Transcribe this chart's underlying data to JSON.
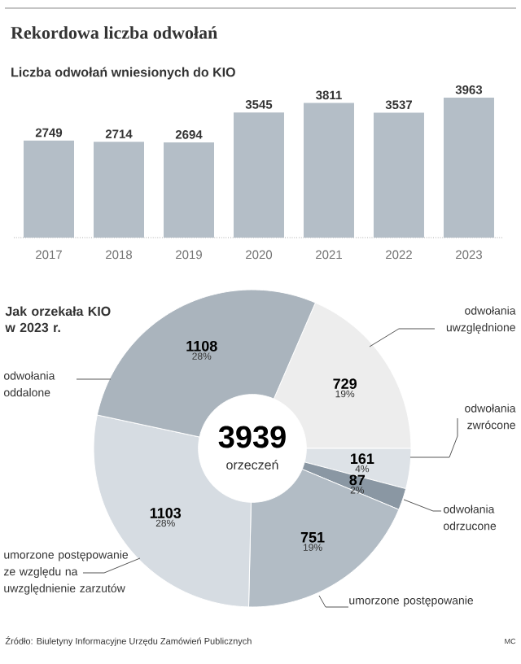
{
  "chart_data": [
    {
      "type": "bar",
      "title": "Rekordowa liczba odwołań",
      "subtitle": "Liczba odwołań wniesionych do KIO",
      "categories": [
        "2017",
        "2018",
        "2019",
        "2020",
        "2021",
        "2022",
        "2023"
      ],
      "values": [
        2749,
        2714,
        2694,
        3545,
        3811,
        3537,
        3963
      ],
      "color": "#b4bec7",
      "data_labels": true,
      "tick_labels": "x"
    },
    {
      "type": "donut",
      "title": "Jak orzekała KIO w 2023 r.",
      "categories": [
        "odwołania uwzględnione",
        "odwołania zwrócone",
        "odwołania odrzucone",
        "umorzone postępowanie",
        "umorzone postępowanie ze względu na uwzględnienie zarzutów",
        "odwołania oddalone"
      ],
      "values": [
        729,
        161,
        87,
        751,
        1103,
        1108
      ],
      "colors": [
        "#ededed",
        "#dde2e7",
        "#8a97a3",
        "#b2bcc5",
        "#d6dce2",
        "#aab4bd"
      ],
      "data_labels": true,
      "annotations": [
        "3939",
        "orzeczeń",
        "Źródło: Biuletyny Informacyjne Urzędu Zamówień Publicznych",
        "MC",
        {
          "text": "19%",
          "x": "odwołania uwzględnione"
        },
        {
          "text": "4%",
          "x": "odwołania zwrócone"
        },
        {
          "text": "2%",
          "x": "odwołania odrzucone"
        },
        {
          "text": "19%",
          "x": "umorzone postępowanie"
        },
        {
          "text": "28%",
          "x": "umorzone postępowanie ze względu na uwzględnienie zarzutów"
        },
        {
          "text": "28%",
          "x": "odwołania oddalone"
        }
      ]
    }
  ]
}
